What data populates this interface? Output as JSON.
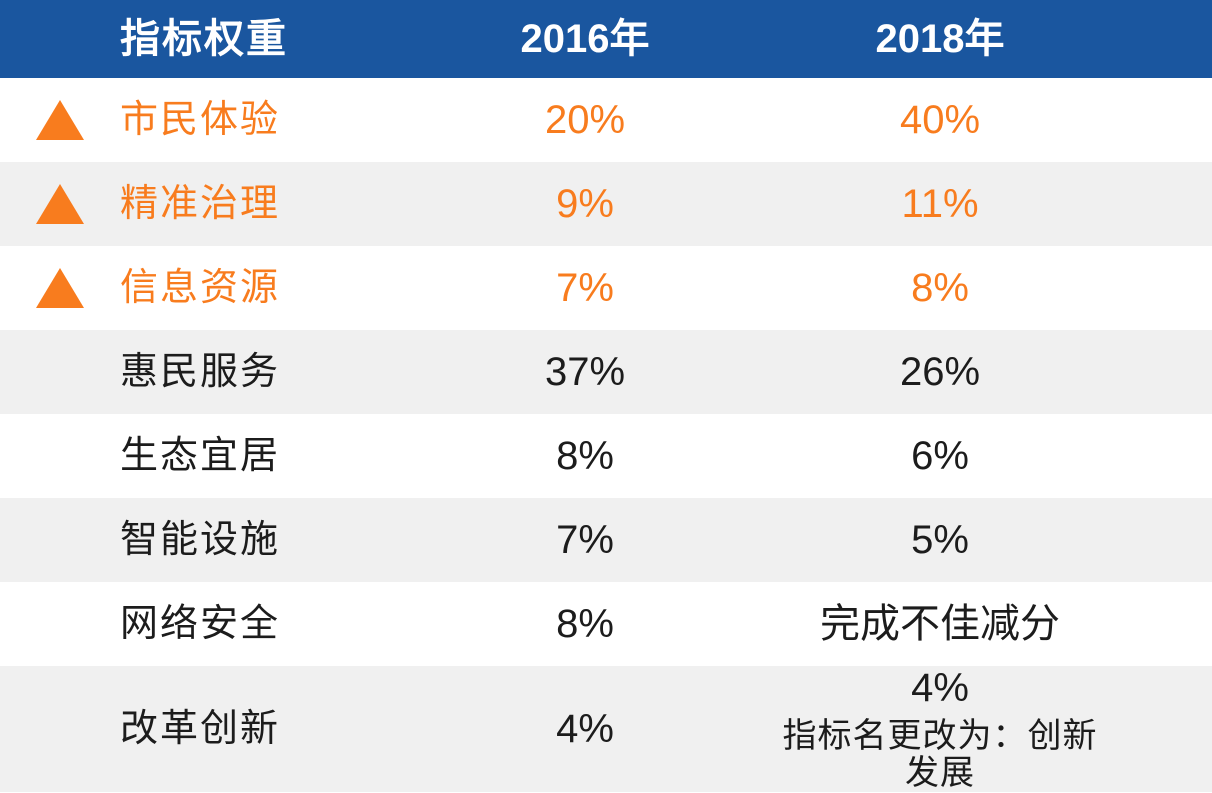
{
  "colors": {
    "header_bg": "#1a569f",
    "header_text": "#ffffff",
    "highlight_orange": "#f87c1e",
    "stripe_gray": "#f0f0f0",
    "body_text": "#1c1c1c"
  },
  "table": {
    "header": {
      "col1": "指标权重",
      "col2": "2016年",
      "col3": "2018年"
    },
    "rows": [
      {
        "label": "市民体验",
        "v2016": "20%",
        "v2018": "40%",
        "highlight": true
      },
      {
        "label": "精准治理",
        "v2016": "9%",
        "v2018": "11%",
        "highlight": true
      },
      {
        "label": "信息资源",
        "v2016": "7%",
        "v2018": "8%",
        "highlight": true
      },
      {
        "label": "惠民服务",
        "v2016": "37%",
        "v2018": "26%",
        "highlight": false
      },
      {
        "label": "生态宜居",
        "v2016": "8%",
        "v2018": "6%",
        "highlight": false
      },
      {
        "label": "智能设施",
        "v2016": "7%",
        "v2018": "5%",
        "highlight": false
      },
      {
        "label": "网络安全",
        "v2016": "8%",
        "v2018": "完成不佳减分",
        "highlight": false
      },
      {
        "label": "改革创新",
        "v2016": "4%",
        "v2018": "4%",
        "v2018_note": "指标名更改为：创新发展",
        "highlight": false
      }
    ]
  },
  "chart_data": {
    "type": "table",
    "title": "指标权重",
    "columns": [
      "指标权重",
      "2016年",
      "2018年"
    ],
    "rows": [
      [
        "市民体验",
        "20%",
        "40%"
      ],
      [
        "精准治理",
        "9%",
        "11%"
      ],
      [
        "信息资源",
        "7%",
        "8%"
      ],
      [
        "惠民服务",
        "37%",
        "26%"
      ],
      [
        "生态宜居",
        "8%",
        "6%"
      ],
      [
        "智能设施",
        "7%",
        "5%"
      ],
      [
        "网络安全",
        "8%",
        "完成不佳减分"
      ],
      [
        "改革创新",
        "4%",
        "4% 指标名更改为：创新发展"
      ]
    ],
    "highlighted_rows": [
      "市民体验",
      "精准治理",
      "信息资源"
    ],
    "highlight_marker": "orange-up-triangle"
  }
}
